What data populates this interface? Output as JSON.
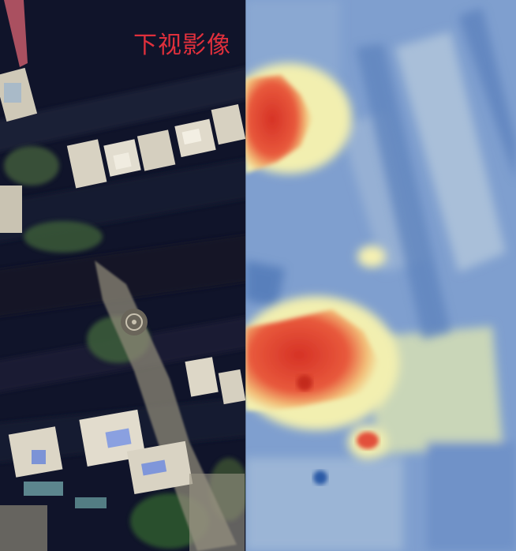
{
  "left_panel": {
    "caption": "下视影像",
    "caption_color": "#e0303c",
    "content": "satellite-imagery"
  },
  "right_panel": {
    "content": "depth-heatmap",
    "palette": [
      "#2c5aa6",
      "#7f9fcf",
      "#c9d6b8",
      "#f2efb0",
      "#e8593c",
      "#d63226"
    ]
  }
}
